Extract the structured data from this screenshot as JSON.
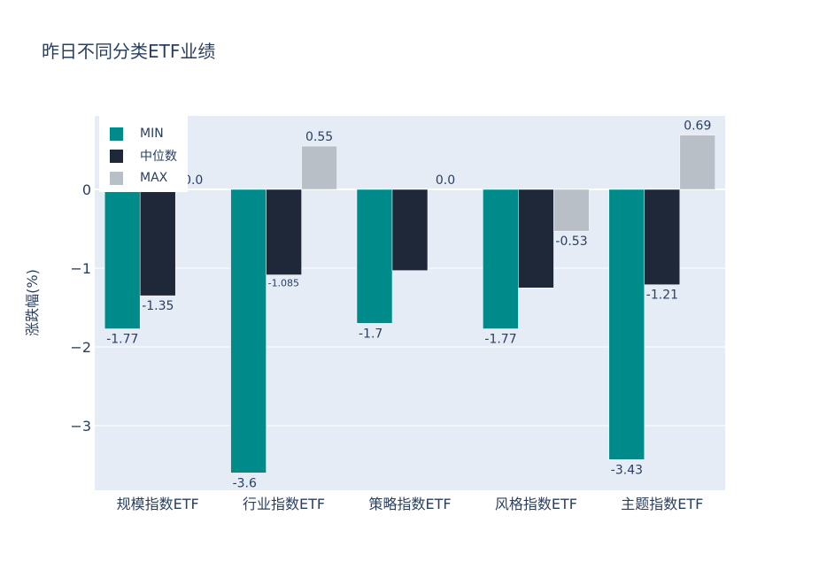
{
  "chart_data": {
    "type": "bar",
    "title": "昨日不同分类ETF业绩",
    "ylabel": "涨跌幅(%)",
    "xlabel": "",
    "categories": [
      "规模指数ETF",
      "行业指数ETF",
      "策略指数ETF",
      "风格指数ETF",
      "主题指数ETF"
    ],
    "series": [
      {
        "name": "MIN",
        "color": "#008b8b",
        "values": [
          -1.77,
          -3.6,
          -1.7,
          -1.77,
          -3.43
        ],
        "labels": [
          "-1.77",
          "-3.6",
          "-1.7",
          "-1.77",
          "-3.43"
        ]
      },
      {
        "name": "中位数",
        "color": "#1f2839",
        "values": [
          -1.35,
          -1.085,
          -1.03,
          -1.25,
          -1.21
        ],
        "labels": [
          "-1.35",
          "-1.085",
          "",
          "",
          "-1.21"
        ]
      },
      {
        "name": "MAX",
        "color": "#b8bfc7",
        "values": [
          0.0,
          0.55,
          0.0,
          -0.53,
          0.69
        ],
        "labels": [
          "0.0",
          "0.55",
          "0.0",
          "-0.53",
          "0.69"
        ]
      }
    ],
    "ylim": [
      -3.85,
      0.93
    ],
    "yticks": [
      0,
      -1,
      -2,
      -3
    ],
    "ytick_labels": [
      "0",
      "−1",
      "−2",
      "−3"
    ],
    "grid": true,
    "legend_position": "top-left",
    "plot_bgcolor": "#e5ecf6"
  }
}
